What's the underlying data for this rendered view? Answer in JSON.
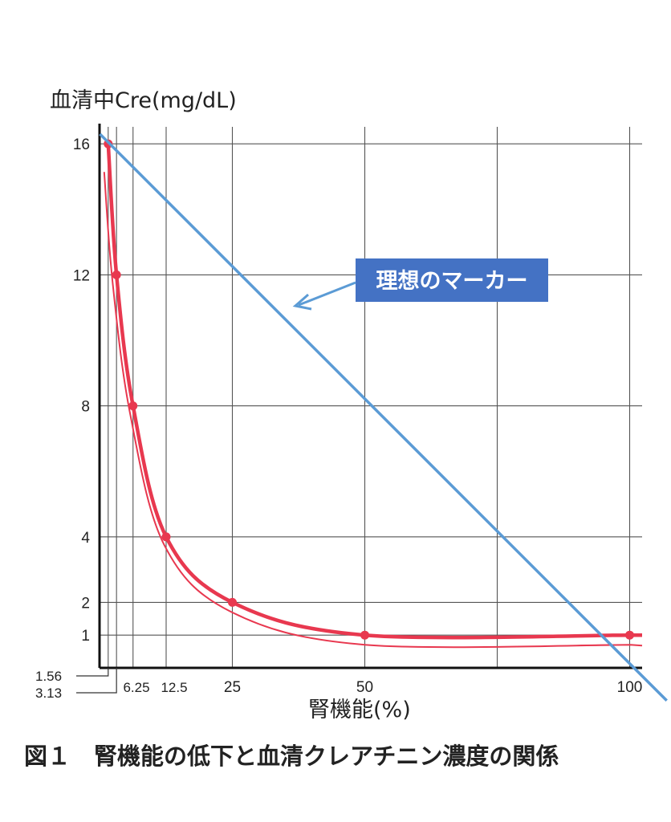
{
  "chart_data": {
    "type": "line",
    "ylabel": "血清中Cre(mg/dL)",
    "xlabel": "腎機能(%)",
    "caption": "図１　腎機能の低下と血清クレアチニン濃度の関係",
    "x_ticks": [
      "1.56",
      "3.13",
      "6.25",
      "12.5",
      "25",
      "50",
      "100"
    ],
    "y_ticks": [
      "1",
      "2",
      "4",
      "8",
      "12",
      "16"
    ],
    "xlim": [
      0,
      102
    ],
    "ylim": [
      0,
      16.5
    ],
    "series": [
      {
        "name": "serum-creatinine-curve",
        "color": "#e8384f",
        "x": [
          1.56,
          3.13,
          6.25,
          12.5,
          25,
          50,
          100
        ],
        "y": [
          16,
          12,
          8,
          4,
          2,
          1,
          1
        ]
      },
      {
        "name": "ideal-marker-line",
        "color": "#5b9bd5",
        "x": [
          0,
          107
        ],
        "y": [
          16.3,
          -1
        ]
      }
    ],
    "annotation": {
      "text": "理想のマーカー",
      "box_color": "#4472c4",
      "arrow_color": "#5b9bd5"
    },
    "grid": true
  }
}
